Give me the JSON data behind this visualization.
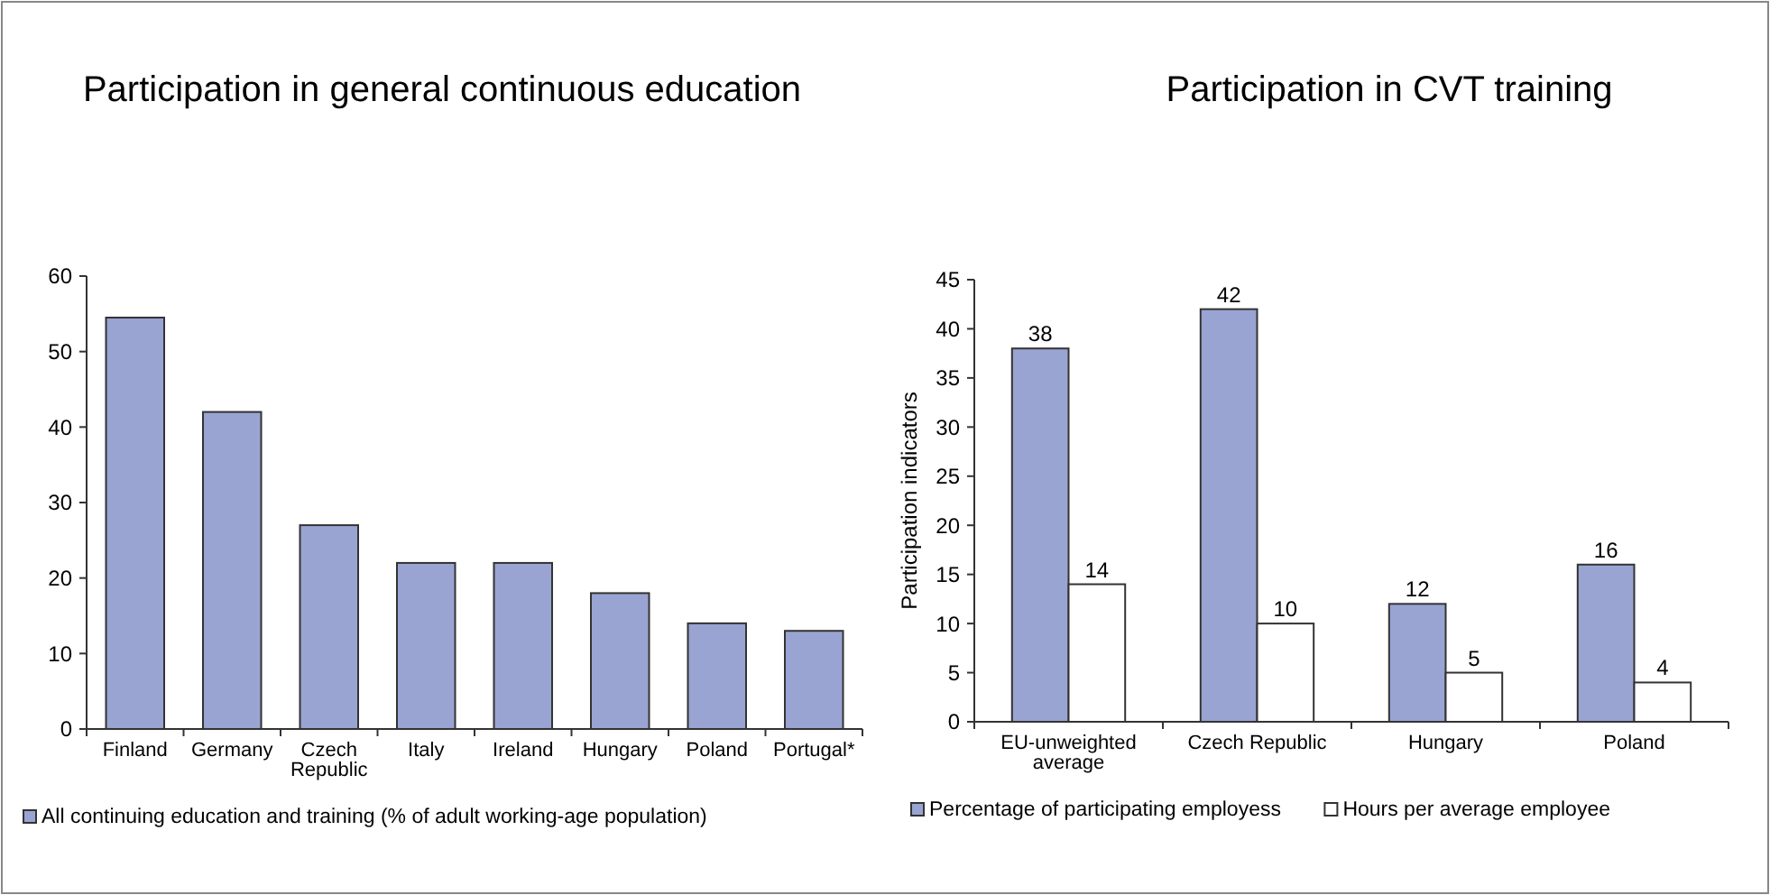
{
  "chart_data": [
    {
      "type": "bar",
      "title": "Participation in general continuous education",
      "categories": [
        "Finland",
        "Germany",
        "Czech Republic",
        "Italy",
        "Ireland",
        "Hungary",
        "Poland",
        "Portugal*"
      ],
      "series": [
        {
          "name": "All continuing education and training (% of adult working-age population)",
          "color": "#99a4d2",
          "values": [
            54.5,
            42,
            27,
            22,
            22,
            18,
            14,
            13
          ]
        }
      ],
      "ylim": [
        0,
        60
      ],
      "yticks": [
        0,
        10,
        20,
        30,
        40,
        50,
        60
      ],
      "legend": "bottom"
    },
    {
      "type": "bar",
      "title": "Participation in CVT training",
      "ylabel": "Participation indicators",
      "categories": [
        "EU-unweighted average",
        "Czech Republic",
        "Hungary",
        "Poland"
      ],
      "series": [
        {
          "name": "Percentage of participating employess",
          "color": "#99a4d2",
          "values": [
            38,
            42,
            12,
            16
          ]
        },
        {
          "name": "Hours per average employee",
          "color": "#ffffff",
          "values": [
            14,
            10,
            5,
            4
          ]
        }
      ],
      "ylim": [
        0,
        45
      ],
      "yticks": [
        0,
        5,
        10,
        15,
        20,
        25,
        30,
        35,
        40,
        45
      ],
      "data_labels": true,
      "legend": "bottom"
    }
  ]
}
